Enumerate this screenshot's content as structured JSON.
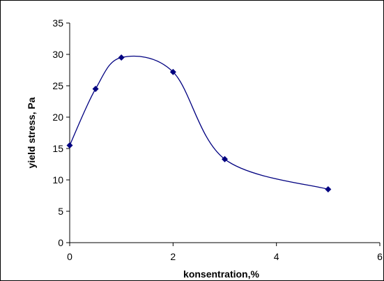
{
  "chart_data": {
    "type": "scatter",
    "title": "",
    "xlabel": "konsentration,%",
    "ylabel": "yield stress, Pa",
    "x": [
      0,
      0.5,
      1,
      2,
      3,
      5
    ],
    "y": [
      15.5,
      24.5,
      29.5,
      27.2,
      13.3,
      8.5
    ],
    "xlim": [
      0,
      6
    ],
    "ylim": [
      0,
      35
    ],
    "x_ticks": [
      "0",
      "2",
      "4",
      "6"
    ],
    "y_ticks": [
      "0",
      "5",
      "10",
      "15",
      "20",
      "25",
      "30",
      "35"
    ],
    "smoothed_line": true,
    "grid": false,
    "legend": "none",
    "series_color": "#000080"
  }
}
